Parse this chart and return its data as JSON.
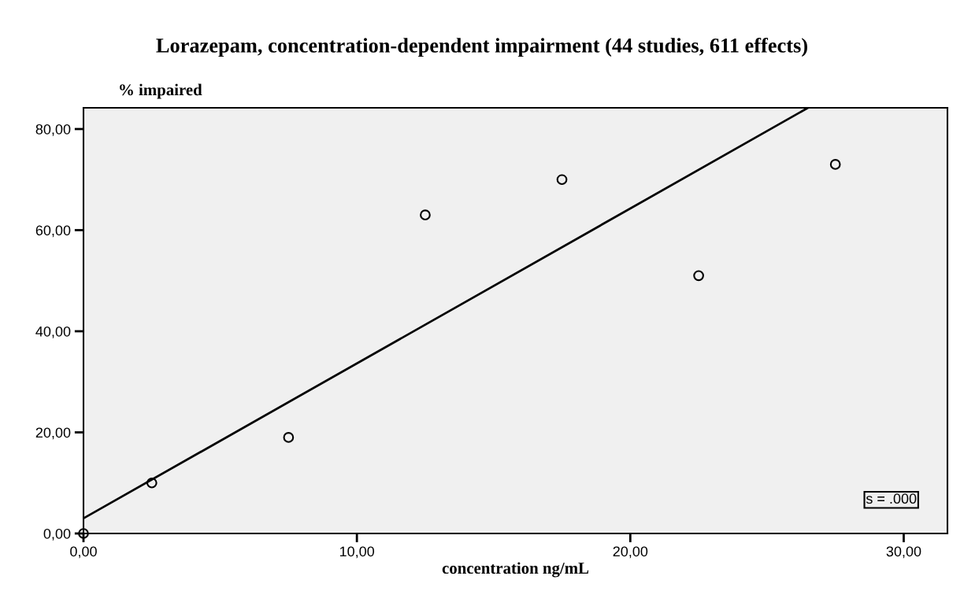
{
  "chart_data": {
    "type": "scatter",
    "title": "Lorazepam, concentration-dependent impairment (44 studies, 611 effects)",
    "ylabel": "% impaired",
    "xlabel": "concentration ng/mL",
    "x": [
      0,
      2.5,
      7.5,
      12.5,
      17.5,
      22.5,
      27.5
    ],
    "series": [
      {
        "color": "#000000",
        "values": [
          0,
          10,
          19,
          63,
          70,
          51,
          73
        ],
        "marker": "circle"
      },
      {
        "type": "line",
        "color": "#000000",
        "x": [
          0,
          26.5
        ],
        "values": [
          3,
          84.2
        ],
        "marker": "none",
        "line_style": "solid"
      }
    ],
    "xlim": [
      0,
      31.6
    ],
    "ylim": [
      0,
      84.2
    ],
    "xticks": [
      {
        "value": 0,
        "label": "0,00"
      },
      {
        "value": 10,
        "label": "10,00"
      },
      {
        "value": 20,
        "label": "20,00"
      },
      {
        "value": 30,
        "label": "30,00"
      }
    ],
    "yticks": [
      {
        "value": 0,
        "label": "0,00"
      },
      {
        "value": 20,
        "label": "20,00"
      },
      {
        "value": 40,
        "label": "40,00"
      },
      {
        "value": 60,
        "label": "60,00"
      },
      {
        "value": 80,
        "label": "80,00"
      }
    ],
    "annotations": [
      "s = .000"
    ],
    "grid": false,
    "legend": false
  }
}
